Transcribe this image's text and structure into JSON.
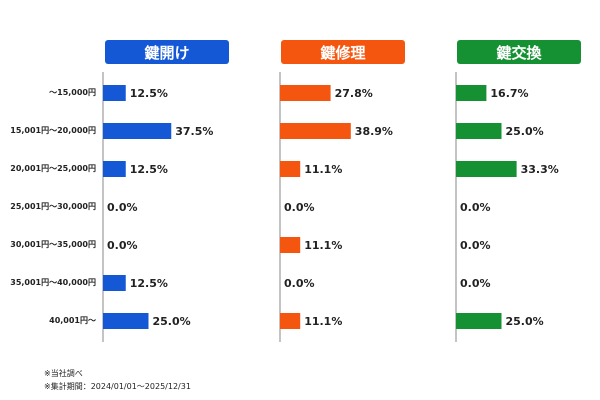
{
  "notes": [
    "※当社調べ",
    "※集計期間：2024/01/01〜2025/12/31"
  ],
  "chart_data": {
    "type": "bar",
    "orientation": "horizontal",
    "categories": [
      "〜15,000円",
      "15,001円〜20,000円",
      "20,001円〜25,000円",
      "25,001円〜30,000円",
      "30,001円〜35,000円",
      "35,001円〜40,000円",
      "40,001円〜"
    ],
    "series": [
      {
        "name": "鍵開け",
        "color": "#1558d6",
        "values": [
          12.5,
          37.5,
          12.5,
          0.0,
          0.0,
          12.5,
          25.0
        ],
        "labels": [
          "12.5%",
          "37.5%",
          "12.5%",
          "0.0%",
          "0.0%",
          "12.5%",
          "25.0%"
        ]
      },
      {
        "name": "鍵修理",
        "color": "#f4560f",
        "values": [
          27.8,
          38.9,
          11.1,
          0.0,
          11.1,
          0.0,
          11.1
        ],
        "labels": [
          "27.8%",
          "38.9%",
          "11.1%",
          "0.0%",
          "11.1%",
          "0.0%",
          "11.1%"
        ]
      },
      {
        "name": "鍵交換",
        "color": "#159033",
        "values": [
          16.7,
          25.0,
          33.3,
          0.0,
          0.0,
          0.0,
          25.0
        ],
        "labels": [
          "16.7%",
          "25.0%",
          "33.3%",
          "0.0%",
          "0.0%",
          "0.0%",
          "25.0%"
        ]
      }
    ],
    "grid": false,
    "legend": "panel headers"
  }
}
